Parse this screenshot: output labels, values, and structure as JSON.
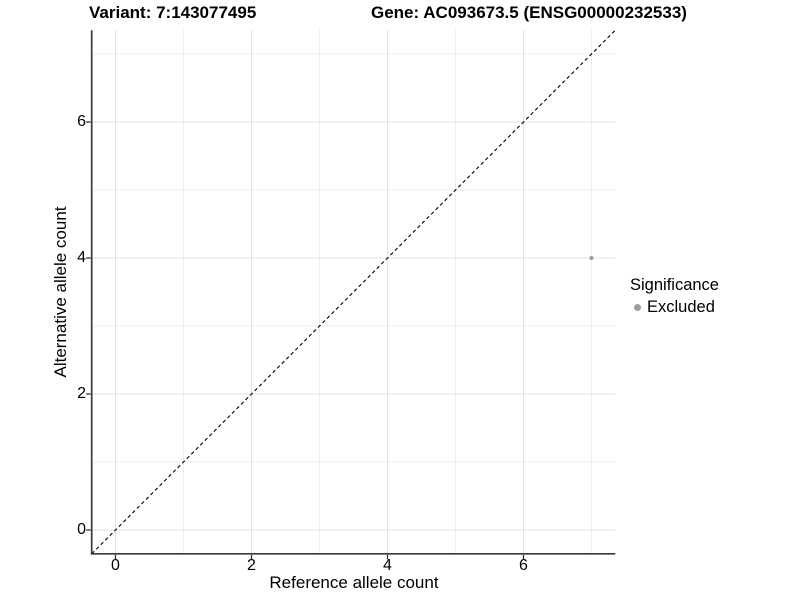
{
  "titles": {
    "variant": "Variant: 7:143077495",
    "gene": "Gene: AC093673.5 (ENSG00000232533)"
  },
  "legend": {
    "title": "Significance",
    "items": [
      {
        "label": "Excluded",
        "color": "#9e9e9e"
      }
    ]
  },
  "chart_data": {
    "type": "scatter",
    "title_left": "Variant: 7:143077495",
    "title_right": "Gene: AC093673.5 (ENSG00000232533)",
    "xlabel": "Reference allele count",
    "ylabel": "Alternative allele count",
    "xlim": [
      -0.35,
      7.35
    ],
    "ylim": [
      -0.35,
      7.35
    ],
    "x_major_ticks": [
      0,
      2,
      4,
      6
    ],
    "y_major_ticks": [
      0,
      2,
      4,
      6
    ],
    "x_minor_gridlines": [
      1,
      3,
      5,
      7
    ],
    "y_minor_gridlines": [
      1,
      3,
      5,
      7
    ],
    "grid": true,
    "legend_position": "right",
    "series": [
      {
        "name": "Excluded",
        "color": "#9c9c9c",
        "points": [
          {
            "x": 7,
            "y": 4
          }
        ]
      }
    ],
    "reference_line": {
      "type": "identity",
      "slope": 1,
      "intercept": 0,
      "style": "dashed",
      "color": "#000000"
    },
    "colors": {
      "grid_major": "#e3e3e3",
      "grid_minor": "#ececec",
      "axis_line": "#3a3a3a",
      "tick_mark": "#333333",
      "background": "#ffffff"
    }
  }
}
